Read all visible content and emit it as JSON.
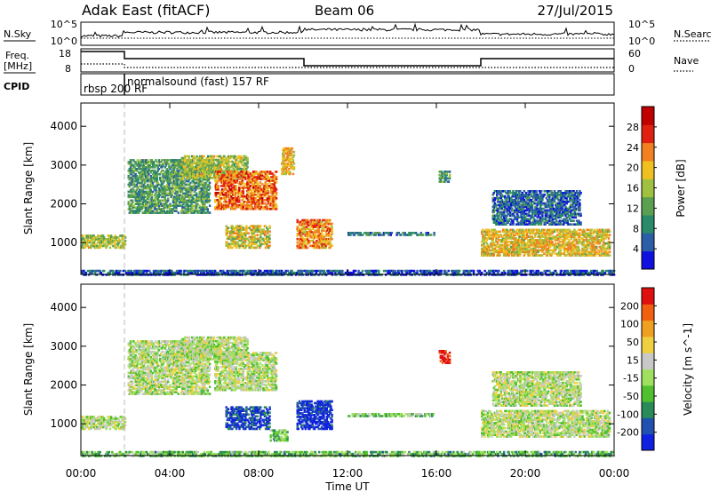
{
  "header": {
    "station": "Adak East (fitACF)",
    "beam": "Beam 06",
    "date": "27/Jul/2015"
  },
  "panels": {
    "nsky": {
      "label": "N.Sky",
      "right_label": "N.Search",
      "left_ticks": [
        "10^5",
        "10^0"
      ],
      "right_ticks": [
        "10^5",
        "10^0"
      ]
    },
    "freq": {
      "label_line1": "Freq.",
      "label_line2": "[MHz]",
      "right_label": "Nave",
      "left_ticks": [
        "18",
        "8"
      ],
      "right_ticks": [
        "60",
        "0"
      ]
    },
    "cpid": {
      "label": "CPID",
      "modes": [
        {
          "text": "rbsp  200 RF"
        },
        {
          "text": "normalsound (fast) 157 RF"
        }
      ]
    }
  },
  "chart_data": [
    {
      "type": "heatmap",
      "name": "power",
      "ylabel": "Slant Range [km]",
      "yticks": [
        "1000",
        "2000",
        "3000",
        "4000"
      ],
      "ylim": [
        180,
        4600
      ],
      "xlim": [
        0,
        24
      ],
      "colorbar": {
        "label": "Power [dB]",
        "ticks": [
          "4",
          "8",
          "12",
          "16",
          "20",
          "24",
          "28"
        ],
        "colors": [
          "#1010e0",
          "#2c5ea8",
          "#2a8a6a",
          "#5aa050",
          "#a0c040",
          "#f0c020",
          "#f08020",
          "#e02010",
          "#c00000"
        ]
      },
      "echo_regions": [
        {
          "t0": 0.0,
          "t1": 2.0,
          "r0": 900,
          "r1": 1250,
          "level": 0.5
        },
        {
          "t0": 2.1,
          "t1": 5.8,
          "r0": 1800,
          "r1": 3200,
          "level": 0.35
        },
        {
          "t0": 4.5,
          "t1": 7.5,
          "r0": 2700,
          "r1": 3300,
          "level": 0.5
        },
        {
          "t0": 6.0,
          "t1": 8.8,
          "r0": 1900,
          "r1": 2900,
          "level": 0.75
        },
        {
          "t0": 6.5,
          "t1": 8.5,
          "r0": 900,
          "r1": 1500,
          "level": 0.55
        },
        {
          "t0": 9.0,
          "t1": 9.6,
          "r0": 2800,
          "r1": 3500,
          "level": 0.6
        },
        {
          "t0": 9.7,
          "t1": 11.3,
          "r0": 900,
          "r1": 1650,
          "level": 0.7
        },
        {
          "t0": 12.0,
          "t1": 15.9,
          "r0": 1230,
          "r1": 1330,
          "level": 0.25
        },
        {
          "t0": 16.1,
          "t1": 16.6,
          "r0": 2600,
          "r1": 2900,
          "level": 0.35
        },
        {
          "t0": 18.0,
          "t1": 23.8,
          "r0": 700,
          "r1": 1400,
          "level": 0.6
        },
        {
          "t0": 18.5,
          "t1": 22.5,
          "r0": 1500,
          "r1": 2400,
          "level": 0.2
        },
        {
          "t0": 0.0,
          "t1": 24.0,
          "r0": 200,
          "r1": 350,
          "level": 0.15
        }
      ]
    },
    {
      "type": "heatmap",
      "name": "velocity",
      "ylabel": "Slant Range [km]",
      "yticks": [
        "1000",
        "2000",
        "3000",
        "4000"
      ],
      "ylim": [
        180,
        4600
      ],
      "xlim": [
        0,
        24
      ],
      "xticks": [
        "00:00",
        "04:00",
        "08:00",
        "12:00",
        "16:00",
        "20:00",
        "00:00"
      ],
      "xlabel": "Time UT",
      "colorbar": {
        "label": "Velocity [m s^-1]",
        "ticks": [
          "200",
          "100",
          "50",
          "15",
          "-15",
          "-50",
          "-100",
          "-200"
        ],
        "colors": [
          "#1020e0",
          "#2050b0",
          "#2a8a5a",
          "#50c030",
          "#a0e060",
          "#c8c8c8",
          "#f0d040",
          "#f0a020",
          "#f06010",
          "#e01010"
        ]
      },
      "echo_regions": [
        {
          "t0": 0.0,
          "t1": 2.0,
          "r0": 900,
          "r1": 1250,
          "vel": 0.5
        },
        {
          "t0": 2.1,
          "t1": 5.8,
          "r0": 1800,
          "r1": 3200,
          "vel": 0.5
        },
        {
          "t0": 4.5,
          "t1": 7.5,
          "r0": 2700,
          "r1": 3300,
          "vel": 0.5
        },
        {
          "t0": 6.0,
          "t1": 8.8,
          "r0": 1900,
          "r1": 2900,
          "vel": 0.5
        },
        {
          "t0": 6.5,
          "t1": 8.5,
          "r0": 900,
          "r1": 1500,
          "vel": 0.1
        },
        {
          "t0": 8.5,
          "t1": 9.3,
          "r0": 600,
          "r1": 900,
          "vel": 0.35
        },
        {
          "t0": 9.7,
          "t1": 11.3,
          "r0": 900,
          "r1": 1650,
          "vel": 0.05
        },
        {
          "t0": 12.0,
          "t1": 15.9,
          "r0": 1230,
          "r1": 1330,
          "vel": 0.42
        },
        {
          "t0": 16.1,
          "t1": 16.6,
          "r0": 2600,
          "r1": 2950,
          "vel": 0.98
        },
        {
          "t0": 18.0,
          "t1": 23.8,
          "r0": 700,
          "r1": 1400,
          "vel": 0.5
        },
        {
          "t0": 18.5,
          "t1": 22.5,
          "r0": 1500,
          "r1": 2400,
          "vel": 0.5
        },
        {
          "t0": 0.0,
          "t1": 24.0,
          "r0": 200,
          "r1": 350,
          "vel": 0.36
        }
      ]
    }
  ]
}
